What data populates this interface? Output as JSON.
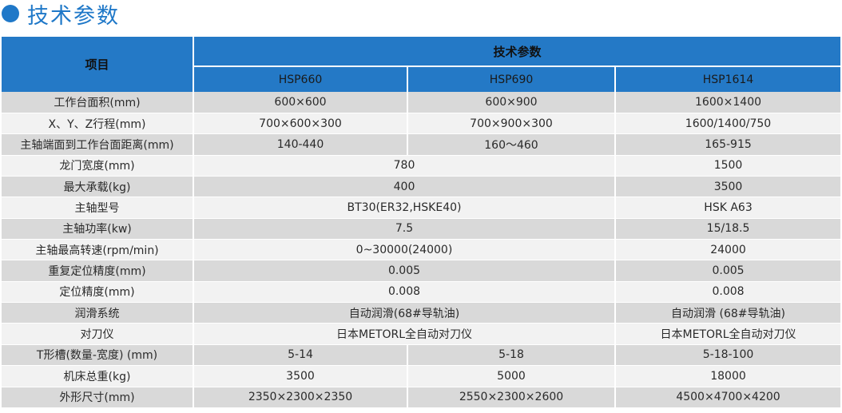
{
  "heading": {
    "title": "技术参数",
    "accent_color": "#1f78c8"
  },
  "table": {
    "header_color": "#2479c6",
    "item_header": "项目",
    "group_header": "技术参数",
    "models": [
      "HSP660",
      "HSP690",
      "HSP1614"
    ],
    "rows": [
      {
        "label": "工作台面积(mm)",
        "values": [
          "600×600",
          "600×900",
          "1600×1400"
        ]
      },
      {
        "label": "X、Y、Z行程(mm)",
        "values": [
          "700×600×300",
          "700×900×300",
          "1600/1400/750"
        ]
      },
      {
        "label": "主轴端面到工作台面距离(mm)",
        "values": [
          "140-440",
          "160～460",
          "165-915"
        ]
      },
      {
        "label": "龙门宽度(mm)",
        "values": [
          "780",
          "1500"
        ]
      },
      {
        "label": "最大承载(kg)",
        "values": [
          "400",
          "3500"
        ]
      },
      {
        "label": "主轴型号",
        "values": [
          "BT30(ER32,HSKE40)",
          "HSK A63"
        ]
      },
      {
        "label": "主轴功率(kw)",
        "values": [
          "7.5",
          "15/18.5"
        ]
      },
      {
        "label": "主轴最高转速(rpm/min)",
        "values": [
          "0~30000(24000)",
          "24000"
        ]
      },
      {
        "label": "重复定位精度(mm)",
        "values": [
          "0.005",
          "0.005"
        ]
      },
      {
        "label": "定位精度(mm)",
        "values": [
          "0.008",
          "0.008"
        ]
      },
      {
        "label": "润滑系统",
        "values": [
          "自动润滑(68#导轨油)",
          "自动润滑 (68#导轨油)"
        ]
      },
      {
        "label": "对刀仪",
        "values": [
          "日本METORL全自动对刀仪",
          "日本METORL全自动对刀仪"
        ]
      },
      {
        "label": "T形槽(数量-宽度) (mm)",
        "values": [
          "5-14",
          "5-18",
          "5-18-100"
        ]
      },
      {
        "label": "机床总重(kg)",
        "values": [
          "3500",
          "5000",
          "18000"
        ]
      },
      {
        "label": "外形尺寸(mm)",
        "values": [
          "2350×2300×2350",
          "2550×2300×2600",
          "4500×4700×4200"
        ]
      }
    ]
  }
}
